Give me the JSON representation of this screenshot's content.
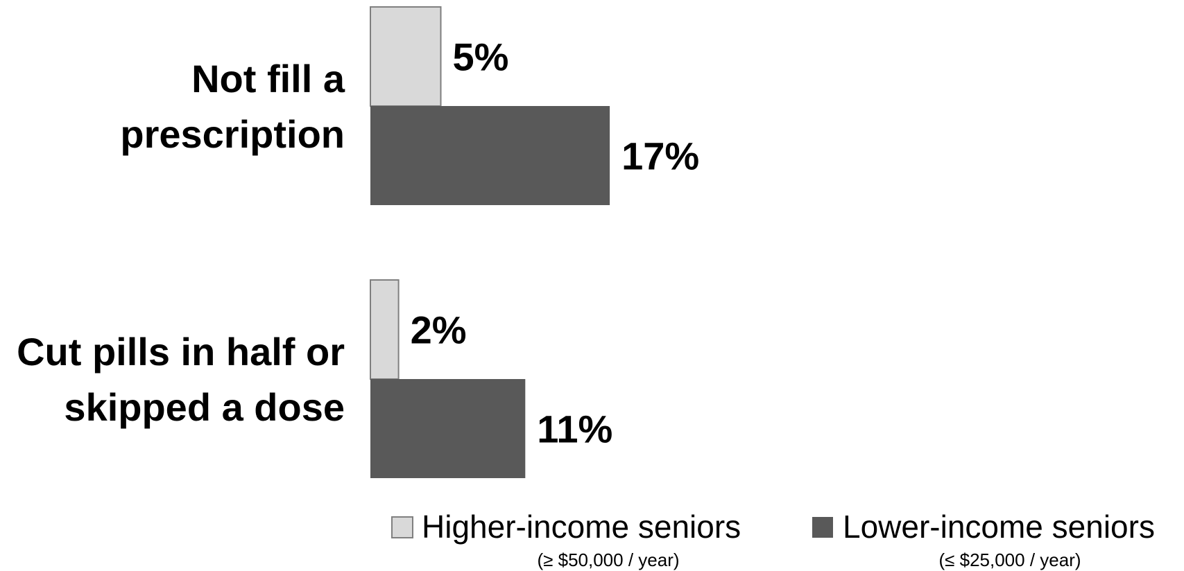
{
  "chart_data": {
    "type": "bar",
    "orientation": "horizontal",
    "categories": [
      "Not fill a prescription",
      "Cut pills in half or skipped a dose"
    ],
    "category_lines": [
      [
        "Not fill a",
        "prescription"
      ],
      [
        "Cut pills in half or",
        "skipped a dose"
      ]
    ],
    "series": [
      {
        "name": "Higher-income seniors",
        "subtitle": "(≥ $50,000 / year)",
        "color": "#d9d9d9",
        "values": [
          5,
          2
        ]
      },
      {
        "name": "Lower-income seniors",
        "subtitle": "(≤ $25,000 / year)",
        "color": "#595959",
        "values": [
          17,
          11
        ]
      }
    ],
    "value_suffix": "%",
    "legend_position": "bottom",
    "grid": false
  }
}
